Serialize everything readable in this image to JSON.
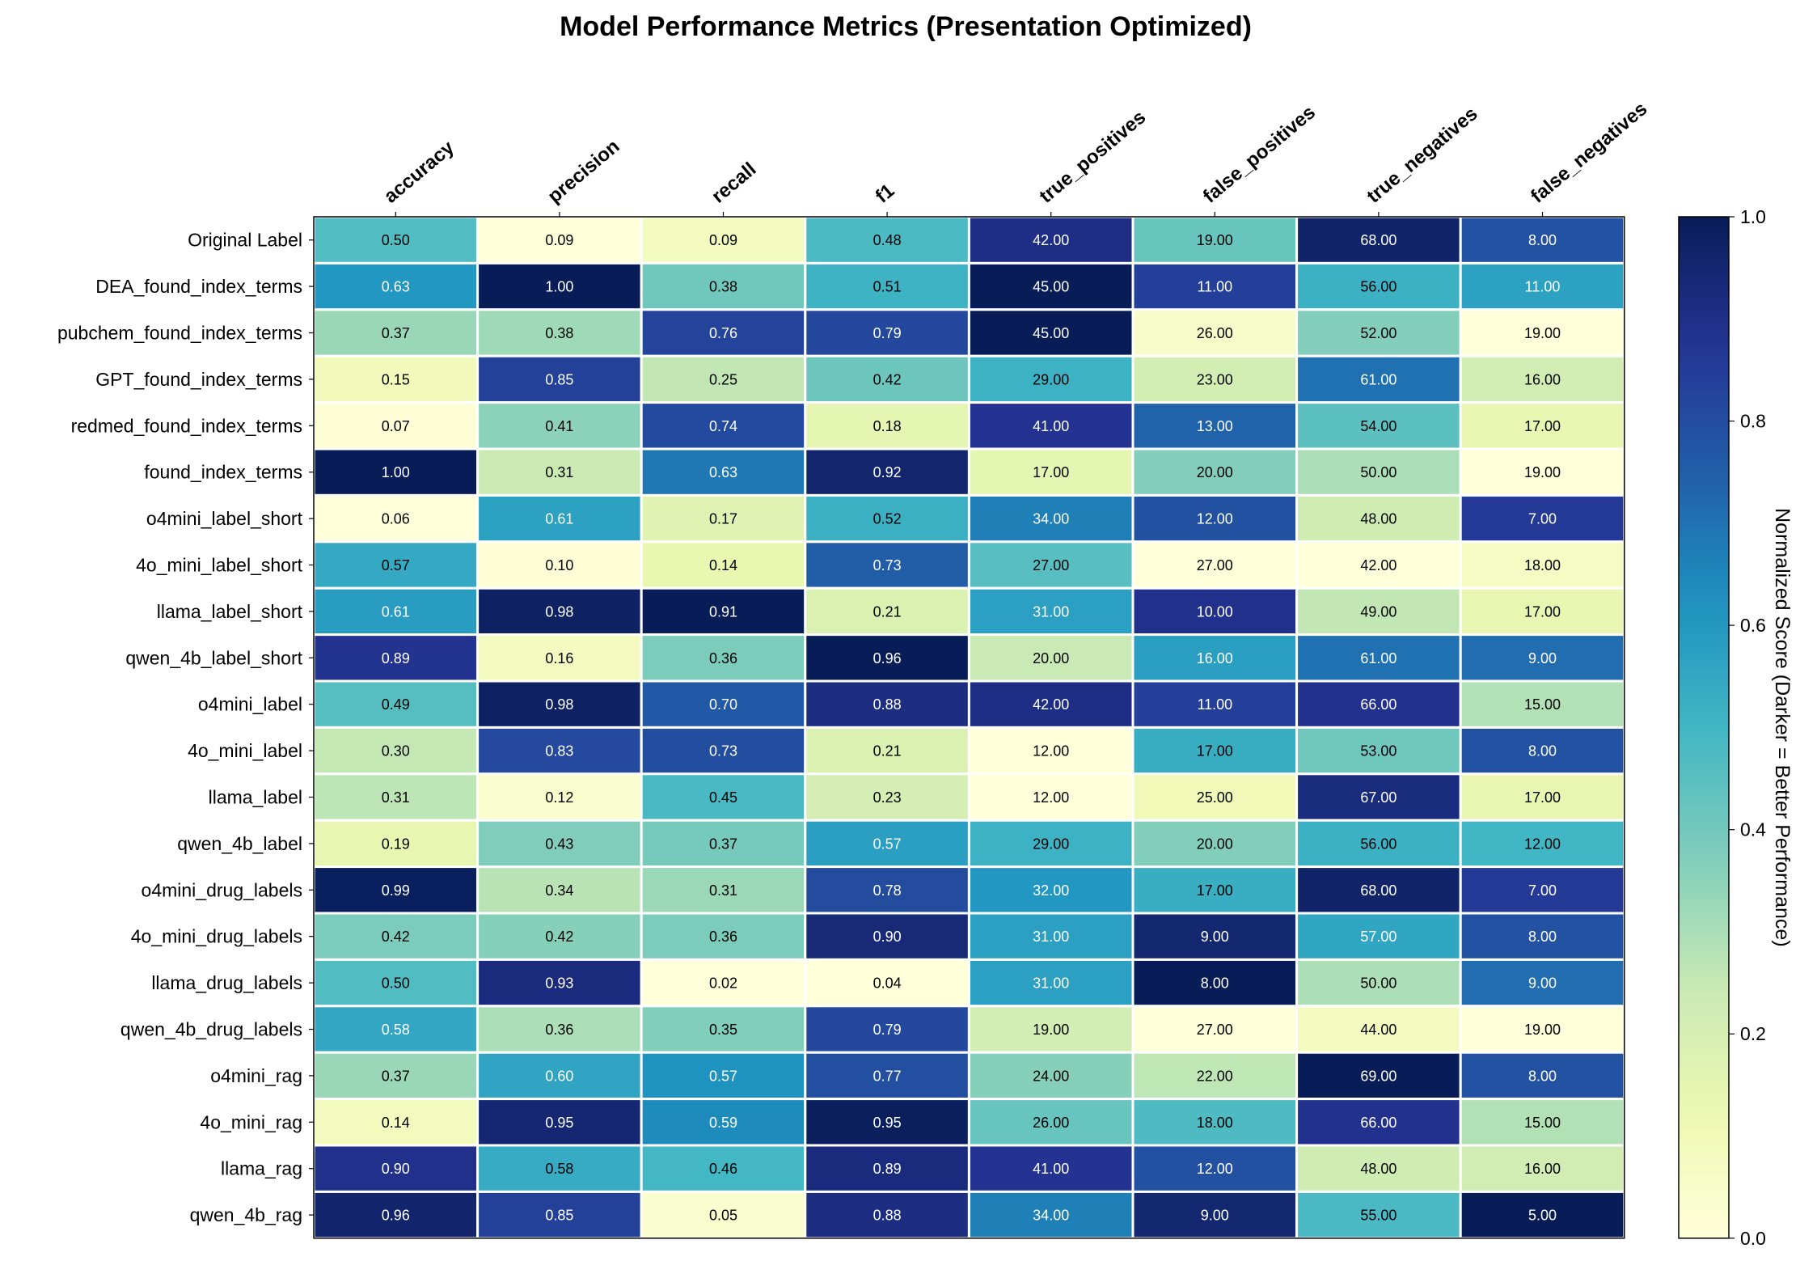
{
  "chart_data": {
    "type": "heatmap",
    "title": "Model Performance Metrics (Presentation Optimized)",
    "columns": [
      "accuracy",
      "precision",
      "recall",
      "f1",
      "true_positives",
      "false_positives",
      "true_negatives",
      "false_negatives"
    ],
    "rows": [
      "Original Label",
      "DEA_found_index_terms",
      "pubchem_found_index_terms",
      "GPT_found_index_terms",
      "redmed_found_index_terms",
      "found_index_terms",
      "o4mini_label_short",
      "4o_mini_label_short",
      "llama_label_short",
      "qwen_4b_label_short",
      "o4mini_label",
      "4o_mini_label",
      "llama_label",
      "qwen_4b_label",
      "o4mini_drug_labels",
      "4o_mini_drug_labels",
      "llama_drug_labels",
      "qwen_4b_drug_labels",
      "o4mini_rag",
      "4o_mini_rag",
      "llama_rag",
      "qwen_4b_rag"
    ],
    "values": [
      [
        "0.50",
        "0.09",
        "0.09",
        "0.48",
        "42.00",
        "19.00",
        "68.00",
        "8.00"
      ],
      [
        "0.63",
        "1.00",
        "0.38",
        "0.51",
        "45.00",
        "11.00",
        "56.00",
        "11.00"
      ],
      [
        "0.37",
        "0.38",
        "0.76",
        "0.79",
        "45.00",
        "26.00",
        "52.00",
        "19.00"
      ],
      [
        "0.15",
        "0.85",
        "0.25",
        "0.42",
        "29.00",
        "23.00",
        "61.00",
        "16.00"
      ],
      [
        "0.07",
        "0.41",
        "0.74",
        "0.18",
        "41.00",
        "13.00",
        "54.00",
        "17.00"
      ],
      [
        "1.00",
        "0.31",
        "0.63",
        "0.92",
        "17.00",
        "20.00",
        "50.00",
        "19.00"
      ],
      [
        "0.06",
        "0.61",
        "0.17",
        "0.52",
        "34.00",
        "12.00",
        "48.00",
        "7.00"
      ],
      [
        "0.57",
        "0.10",
        "0.14",
        "0.73",
        "27.00",
        "27.00",
        "42.00",
        "18.00"
      ],
      [
        "0.61",
        "0.98",
        "0.91",
        "0.21",
        "31.00",
        "10.00",
        "49.00",
        "17.00"
      ],
      [
        "0.89",
        "0.16",
        "0.36",
        "0.96",
        "20.00",
        "16.00",
        "61.00",
        "9.00"
      ],
      [
        "0.49",
        "0.98",
        "0.70",
        "0.88",
        "42.00",
        "11.00",
        "66.00",
        "15.00"
      ],
      [
        "0.30",
        "0.83",
        "0.73",
        "0.21",
        "12.00",
        "17.00",
        "53.00",
        "8.00"
      ],
      [
        "0.31",
        "0.12",
        "0.45",
        "0.23",
        "12.00",
        "25.00",
        "67.00",
        "17.00"
      ],
      [
        "0.19",
        "0.43",
        "0.37",
        "0.57",
        "29.00",
        "20.00",
        "56.00",
        "12.00"
      ],
      [
        "0.99",
        "0.34",
        "0.31",
        "0.78",
        "32.00",
        "17.00",
        "68.00",
        "7.00"
      ],
      [
        "0.42",
        "0.42",
        "0.36",
        "0.90",
        "31.00",
        "9.00",
        "57.00",
        "8.00"
      ],
      [
        "0.50",
        "0.93",
        "0.02",
        "0.04",
        "31.00",
        "8.00",
        "50.00",
        "9.00"
      ],
      [
        "0.58",
        "0.36",
        "0.35",
        "0.79",
        "19.00",
        "27.00",
        "44.00",
        "19.00"
      ],
      [
        "0.37",
        "0.60",
        "0.57",
        "0.77",
        "24.00",
        "22.00",
        "69.00",
        "8.00"
      ],
      [
        "0.14",
        "0.95",
        "0.59",
        "0.95",
        "26.00",
        "18.00",
        "66.00",
        "15.00"
      ],
      [
        "0.90",
        "0.58",
        "0.46",
        "0.89",
        "41.00",
        "12.00",
        "48.00",
        "16.00"
      ],
      [
        "0.96",
        "0.85",
        "0.05",
        "0.88",
        "34.00",
        "9.00",
        "55.00",
        "5.00"
      ]
    ],
    "colorbar": {
      "label": "Normalized Score (Darker = Better Performance)",
      "range": [
        0,
        1
      ],
      "ticks": [
        "0.0",
        "0.2",
        "0.4",
        "0.6",
        "0.8",
        "1.0"
      ]
    },
    "colormap": "YlGnBu",
    "colormap_stops": [
      "#ffffd9",
      "#edf8b1",
      "#c7e9b4",
      "#7fcdbb",
      "#41b6c4",
      "#1d91c0",
      "#225ea8",
      "#253494",
      "#081d58"
    ]
  }
}
